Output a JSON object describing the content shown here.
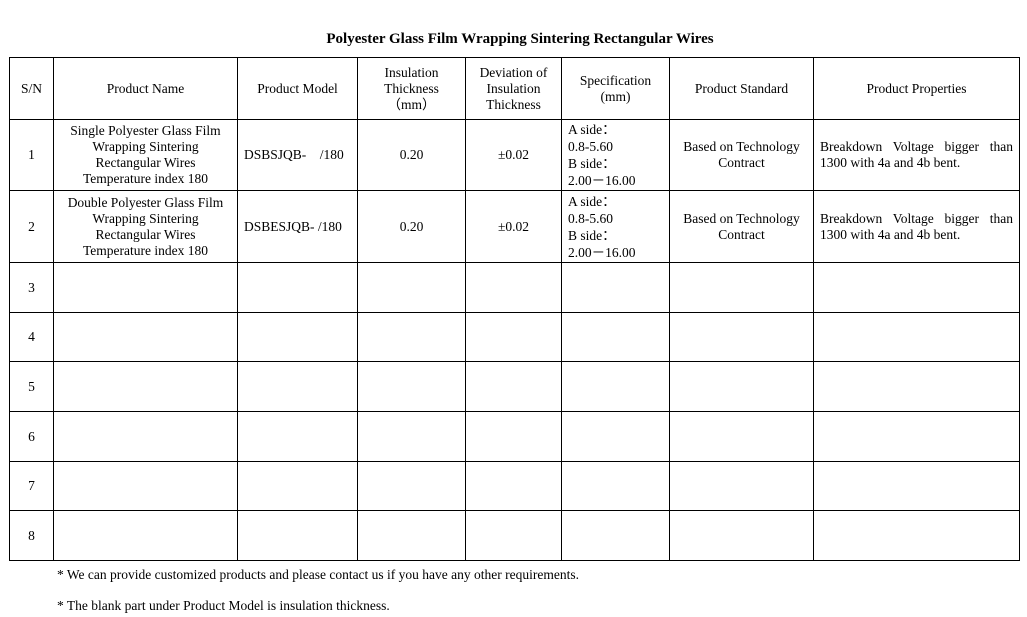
{
  "title": "Polyester Glass Film Wrapping Sintering Rectangular Wires",
  "headers": [
    "S/N",
    "Product Name",
    "Product Model",
    "Insulation Thickness（mm）",
    "Deviation of Insulation Thickness",
    "Specification (mm)",
    "Product Standard",
    "Product Properties"
  ],
  "rows": [
    {
      "sn": "1",
      "name": "Single Polyester Glass Film Wrapping Sintering Rectangular Wires Temperature index 180",
      "model": "DSBSJQB-    /180",
      "thickness": "0.20",
      "deviation": "±0.02",
      "spec": [
        "A side：",
        "0.8-5.60",
        "B side：",
        "2.00－16.00"
      ],
      "standard": "Based on Technology Contract",
      "properties": "Breakdown Voltage bigger than 1300 with 4a and 4b bent."
    },
    {
      "sn": "2",
      "name": "Double Polyester Glass Film Wrapping Sintering Rectangular Wires Temperature index 180",
      "model": "DSBESJQB- /180",
      "thickness": "0.20",
      "deviation": "±0.02",
      "spec": [
        "A side：",
        "0.8-5.60",
        "B side：",
        "2.00－16.00"
      ],
      "standard": "Based on Technology Contract",
      "properties": "Breakdown Voltage bigger than 1300 with 4a and 4b bent."
    }
  ],
  "blank_rows": [
    "3",
    "4",
    "5",
    "6",
    "7",
    "8"
  ],
  "notes": [
    "* We can provide customized products and please contact us if you have any other requirements.",
    "* The blank part under Product Model is insulation thickness."
  ]
}
